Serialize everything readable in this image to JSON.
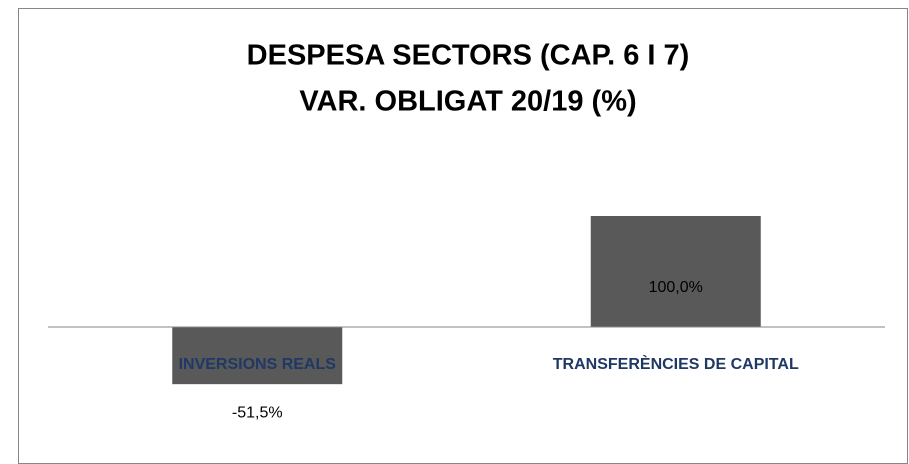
{
  "chart_data": {
    "type": "bar",
    "title": [
      "DESPESA SECTORS (CAP. 6 I 7)",
      "VAR. OBLIGAT 20/19 (%)"
    ],
    "categories": [
      "INVERSIONS REALS",
      "TRANSFERÈNCIES DE CAPITAL"
    ],
    "values": [
      -51.5,
      100.0
    ],
    "value_labels": [
      "-51,5%",
      "100,0%"
    ],
    "color": "#595959",
    "category_color": "#1f3864"
  }
}
